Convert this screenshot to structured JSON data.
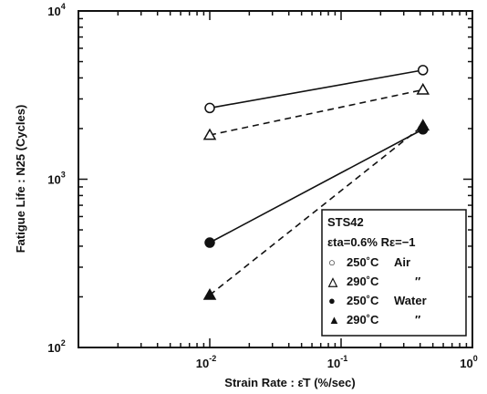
{
  "chart_data": {
    "type": "scatter",
    "x_scale": "log",
    "y_scale": "log",
    "xlim": [
      0.001,
      1
    ],
    "ylim": [
      100,
      10000
    ],
    "x_tick_labels": [
      {
        "value": 0.01,
        "base": "10",
        "exp": "-2"
      },
      {
        "value": 0.1,
        "base": "10",
        "exp": "-1"
      },
      {
        "value": 1,
        "base": "10",
        "exp": "0"
      }
    ],
    "y_tick_labels": [
      {
        "value": 100,
        "base": "10",
        "exp": "2"
      },
      {
        "value": 1000,
        "base": "10",
        "exp": "3"
      },
      {
        "value": 10000,
        "base": "10",
        "exp": "4"
      }
    ],
    "xlabel": "Strain Rate  : ε̇T  (%/sec)",
    "ylabel": "Fatigue Life : N25 (Cycles)",
    "grid": false,
    "legend": {
      "position": "bottom-right",
      "title": "STS42",
      "condition": "εta=0.6%  Rε=−1",
      "entries": [
        {
          "marker": "○",
          "temp": "250˚C",
          "env": "Air"
        },
        {
          "marker": "△",
          "temp": "290˚C",
          "env": "″"
        },
        {
          "marker": "●",
          "temp": "250˚C",
          "env": "Water"
        },
        {
          "marker": "▲",
          "temp": "290˚C",
          "env": "″"
        }
      ]
    },
    "series": [
      {
        "marker": "open-circle",
        "line": "solid",
        "x": [
          0.01,
          0.42
        ],
        "y": [
          2650,
          4450
        ]
      },
      {
        "marker": "open-triangle",
        "line": "dashed",
        "x": [
          0.01,
          0.42
        ],
        "y": [
          1830,
          3400
        ]
      },
      {
        "marker": "filled-circle",
        "line": "solid",
        "x": [
          0.01,
          0.42
        ],
        "y": [
          420,
          1980
        ]
      },
      {
        "marker": "filled-triangle",
        "line": "dashed",
        "x": [
          0.01,
          0.42
        ],
        "y": [
          205,
          2080
        ]
      }
    ]
  }
}
